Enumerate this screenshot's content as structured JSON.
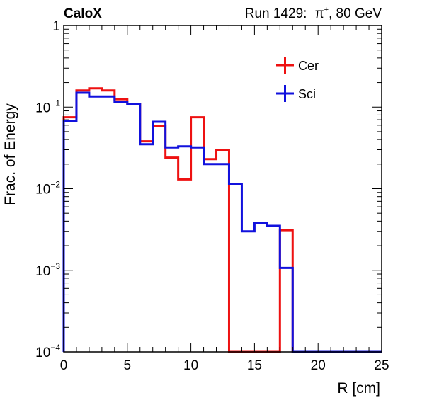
{
  "header": {
    "label_left": "CaloX",
    "label_right_prefix": "Run 1429:",
    "label_right_particle": "π",
    "label_right_charge": "+",
    "label_right_suffix": ", 80 GeV"
  },
  "chart_data": {
    "type": "line",
    "title": "",
    "xlabel": "R [cm]",
    "ylabel": "Frac. of Energy",
    "xlim": [
      0,
      25
    ],
    "ylim": [
      0.0001,
      1
    ],
    "yscale": "log",
    "x_ticks": [
      "0",
      "5",
      "10",
      "15",
      "20",
      "25"
    ],
    "y_ticks": [
      {
        "base": "10",
        "exp": "−4",
        "value": 0.0001
      },
      {
        "base": "10",
        "exp": "−3",
        "value": 0.001
      },
      {
        "base": "10",
        "exp": "−2",
        "value": 0.01
      },
      {
        "base": "10",
        "exp": "−1",
        "value": 0.1
      },
      {
        "base": "1",
        "exp": "",
        "value": 1
      }
    ],
    "bin_edges": [
      0,
      1,
      2,
      3,
      4,
      5,
      6,
      7,
      8,
      9,
      10,
      11,
      12,
      13,
      14,
      15,
      16,
      17,
      18,
      19,
      20,
      21,
      22,
      23,
      24,
      25
    ],
    "grid": false,
    "legend_position": "top-right",
    "series": [
      {
        "name": "Cer",
        "color": "#ee1111",
        "values": [
          0.075,
          0.16,
          0.17,
          0.16,
          0.125,
          0.11,
          0.038,
          0.058,
          0.024,
          0.013,
          0.075,
          0.023,
          0.03,
          0,
          0,
          0,
          0,
          0.0031,
          0,
          0,
          0,
          0,
          0,
          0,
          0
        ]
      },
      {
        "name": "Sci",
        "color": "#1111dd",
        "values": [
          0.068,
          0.15,
          0.135,
          0.135,
          0.115,
          0.11,
          0.035,
          0.066,
          0.032,
          0.033,
          0.032,
          0.02,
          0.02,
          0.0115,
          0.003,
          0.0038,
          0.0035,
          0.00107,
          0,
          0,
          0,
          0,
          0,
          0,
          0
        ]
      }
    ]
  }
}
